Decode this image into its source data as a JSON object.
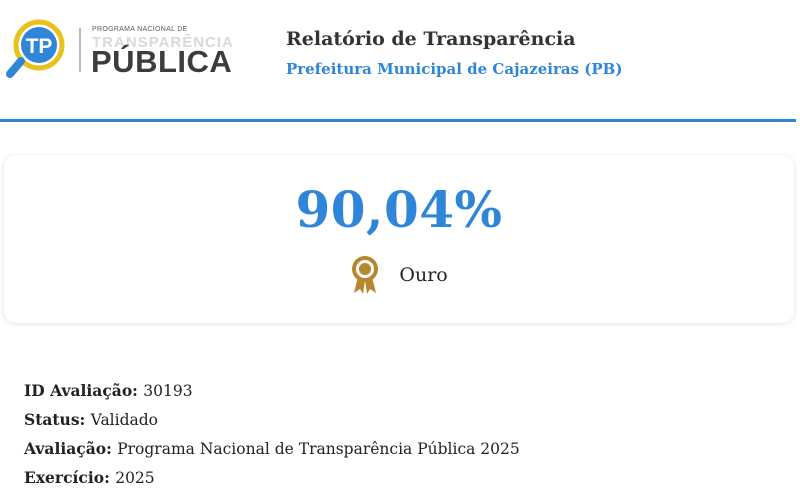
{
  "logo": {
    "small_text": "PROGRAMA NACIONAL DE",
    "mid_text": "TRANSPARÊNCIA",
    "big_text": "PÚBLICA",
    "icon": "tp-magnifier-logo",
    "colors": {
      "blue": "#2f86d8",
      "yellow": "#e8c21b",
      "dark": "#3c3c3c"
    }
  },
  "header": {
    "title": "Relatório de Transparência",
    "subtitle": "Prefeitura Municipal de Cajazeiras (PB)",
    "accent": "#2f86d8"
  },
  "score": {
    "value": "90,04%",
    "medal_icon": "medal-icon",
    "medal_label": "Ouro",
    "medal_color": "#b8862e"
  },
  "details": [
    {
      "label": "ID Avaliação:",
      "value": "30193"
    },
    {
      "label": "Status:",
      "value": "Validado"
    },
    {
      "label": "Avaliação:",
      "value": "Programa Nacional de Transparência Pública 2025"
    },
    {
      "label": "Exercício:",
      "value": "2025"
    }
  ]
}
